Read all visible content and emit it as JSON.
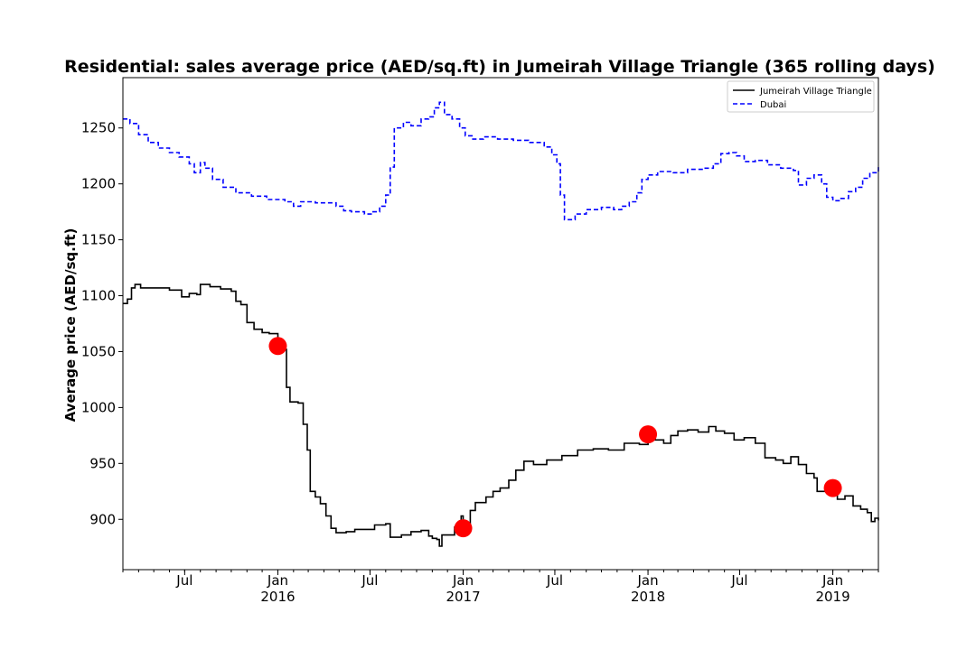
{
  "chart_data": {
    "type": "line",
    "title": "Residential: sales average price (AED/sq.ft) in Jumeirah Village Triangle (365 rolling days)",
    "xlabel": "",
    "ylabel": "Average price (AED/sq.ft)",
    "x_range": [
      "2015-03-01",
      "2019-04-01"
    ],
    "ylim": [
      855,
      1295
    ],
    "y_ticks": [
      900,
      950,
      1000,
      1050,
      1100,
      1150,
      1200,
      1250
    ],
    "x_ticks": [
      {
        "date": "2015-07-01",
        "label": "Jul",
        "year": ""
      },
      {
        "date": "2016-01-01",
        "label": "Jan",
        "year": "2016"
      },
      {
        "date": "2016-07-01",
        "label": "Jul",
        "year": ""
      },
      {
        "date": "2017-01-01",
        "label": "Jan",
        "year": "2017"
      },
      {
        "date": "2017-07-01",
        "label": "Jul",
        "year": ""
      },
      {
        "date": "2018-01-01",
        "label": "Jan",
        "year": "2018"
      },
      {
        "date": "2018-07-01",
        "label": "Jul",
        "year": ""
      },
      {
        "date": "2019-01-01",
        "label": "Jan",
        "year": "2019"
      }
    ],
    "grid": false,
    "legend_position": "top-right",
    "series": [
      {
        "name": "Jumeirah Village Triangle",
        "color": "#000000",
        "style": "solid",
        "points": [
          [
            "2015-03-01",
            1093
          ],
          [
            "2015-03-10",
            1097
          ],
          [
            "2015-03-18",
            1107
          ],
          [
            "2015-03-25",
            1110
          ],
          [
            "2015-04-05",
            1107
          ],
          [
            "2015-05-01",
            1107
          ],
          [
            "2015-06-01",
            1105
          ],
          [
            "2015-06-25",
            1099
          ],
          [
            "2015-07-10",
            1102
          ],
          [
            "2015-07-25",
            1101
          ],
          [
            "2015-08-01",
            1110
          ],
          [
            "2015-08-20",
            1108
          ],
          [
            "2015-09-10",
            1106
          ],
          [
            "2015-10-01",
            1104
          ],
          [
            "2015-10-10",
            1095
          ],
          [
            "2015-10-20",
            1092
          ],
          [
            "2015-11-01",
            1076
          ],
          [
            "2015-11-15",
            1070
          ],
          [
            "2015-12-01",
            1067
          ],
          [
            "2015-12-15",
            1066
          ],
          [
            "2016-01-01",
            1055
          ],
          [
            "2016-01-12",
            1052
          ],
          [
            "2016-01-18",
            1018
          ],
          [
            "2016-01-25",
            1005
          ],
          [
            "2016-02-10",
            1004
          ],
          [
            "2016-02-20",
            985
          ],
          [
            "2016-02-28",
            962
          ],
          [
            "2016-03-05",
            925
          ],
          [
            "2016-03-15",
            920
          ],
          [
            "2016-03-25",
            914
          ],
          [
            "2016-04-05",
            903
          ],
          [
            "2016-04-15",
            892
          ],
          [
            "2016-04-25",
            888
          ],
          [
            "2016-05-15",
            889
          ],
          [
            "2016-06-01",
            891
          ],
          [
            "2016-06-20",
            891
          ],
          [
            "2016-07-10",
            895
          ],
          [
            "2016-08-01",
            896
          ],
          [
            "2016-08-10",
            884
          ],
          [
            "2016-09-01",
            886
          ],
          [
            "2016-09-20",
            889
          ],
          [
            "2016-10-10",
            890
          ],
          [
            "2016-10-25",
            885
          ],
          [
            "2016-11-01",
            883
          ],
          [
            "2016-11-10",
            882
          ],
          [
            "2016-11-15",
            876
          ],
          [
            "2016-11-20",
            886
          ],
          [
            "2016-12-01",
            886
          ],
          [
            "2016-12-15",
            893
          ],
          [
            "2016-12-28",
            903
          ],
          [
            "2017-01-01",
            892
          ],
          [
            "2017-01-15",
            908
          ],
          [
            "2017-01-25",
            915
          ],
          [
            "2017-02-15",
            920
          ],
          [
            "2017-03-01",
            925
          ],
          [
            "2017-03-15",
            928
          ],
          [
            "2017-04-01",
            935
          ],
          [
            "2017-04-15",
            944
          ],
          [
            "2017-05-01",
            952
          ],
          [
            "2017-05-20",
            949
          ],
          [
            "2017-06-15",
            953
          ],
          [
            "2017-07-15",
            957
          ],
          [
            "2017-08-15",
            962
          ],
          [
            "2017-09-15",
            963
          ],
          [
            "2017-10-15",
            962
          ],
          [
            "2017-11-15",
            968
          ],
          [
            "2017-12-15",
            967
          ],
          [
            "2018-01-01",
            976
          ],
          [
            "2018-01-15",
            971
          ],
          [
            "2018-02-01",
            968
          ],
          [
            "2018-02-15",
            975
          ],
          [
            "2018-03-01",
            979
          ],
          [
            "2018-03-20",
            980
          ],
          [
            "2018-04-10",
            978
          ],
          [
            "2018-05-01",
            983
          ],
          [
            "2018-05-15",
            979
          ],
          [
            "2018-06-01",
            977
          ],
          [
            "2018-06-20",
            971
          ],
          [
            "2018-07-10",
            973
          ],
          [
            "2018-08-01",
            968
          ],
          [
            "2018-08-20",
            955
          ],
          [
            "2018-09-10",
            953
          ],
          [
            "2018-09-25",
            950
          ],
          [
            "2018-10-10",
            956
          ],
          [
            "2018-10-25",
            949
          ],
          [
            "2018-11-10",
            941
          ],
          [
            "2018-11-25",
            937
          ],
          [
            "2018-12-01",
            925
          ],
          [
            "2018-12-20",
            927
          ],
          [
            "2019-01-01",
            928
          ],
          [
            "2019-01-10",
            918
          ],
          [
            "2019-01-25",
            921
          ],
          [
            "2019-02-10",
            912
          ],
          [
            "2019-02-25",
            909
          ],
          [
            "2019-03-10",
            906
          ],
          [
            "2019-03-18",
            898
          ],
          [
            "2019-03-25",
            901
          ],
          [
            "2019-04-01",
            899
          ]
        ]
      },
      {
        "name": "Dubai",
        "color": "#0000ff",
        "style": "dashed",
        "points": [
          [
            "2015-03-01",
            1258
          ],
          [
            "2015-03-15",
            1254
          ],
          [
            "2015-04-01",
            1244
          ],
          [
            "2015-04-20",
            1237
          ],
          [
            "2015-05-10",
            1232
          ],
          [
            "2015-06-01",
            1228
          ],
          [
            "2015-06-20",
            1224
          ],
          [
            "2015-07-10",
            1218
          ],
          [
            "2015-07-20",
            1210
          ],
          [
            "2015-08-01",
            1219
          ],
          [
            "2015-08-10",
            1214
          ],
          [
            "2015-08-25",
            1204
          ],
          [
            "2015-09-15",
            1197
          ],
          [
            "2015-10-10",
            1192
          ],
          [
            "2015-11-10",
            1189
          ],
          [
            "2015-12-10",
            1186
          ],
          [
            "2016-01-15",
            1184
          ],
          [
            "2016-02-01",
            1180
          ],
          [
            "2016-02-15",
            1184
          ],
          [
            "2016-03-15",
            1183
          ],
          [
            "2016-04-10",
            1183
          ],
          [
            "2016-04-25",
            1180
          ],
          [
            "2016-05-10",
            1176
          ],
          [
            "2016-05-25",
            1175
          ],
          [
            "2016-06-20",
            1173
          ],
          [
            "2016-07-05",
            1175
          ],
          [
            "2016-07-20",
            1180
          ],
          [
            "2016-08-01",
            1190
          ],
          [
            "2016-08-10",
            1215
          ],
          [
            "2016-08-18",
            1250
          ],
          [
            "2016-09-05",
            1255
          ],
          [
            "2016-09-20",
            1252
          ],
          [
            "2016-10-10",
            1258
          ],
          [
            "2016-10-25",
            1260
          ],
          [
            "2016-11-05",
            1268
          ],
          [
            "2016-11-15",
            1273
          ],
          [
            "2016-11-25",
            1262
          ],
          [
            "2016-12-10",
            1258
          ],
          [
            "2016-12-25",
            1250
          ],
          [
            "2017-01-05",
            1243
          ],
          [
            "2017-01-20",
            1240
          ],
          [
            "2017-02-10",
            1242
          ],
          [
            "2017-03-10",
            1240
          ],
          [
            "2017-04-10",
            1239
          ],
          [
            "2017-05-10",
            1237
          ],
          [
            "2017-06-10",
            1233
          ],
          [
            "2017-06-25",
            1226
          ],
          [
            "2017-07-05",
            1218
          ],
          [
            "2017-07-12",
            1190
          ],
          [
            "2017-07-20",
            1168
          ],
          [
            "2017-08-10",
            1173
          ],
          [
            "2017-09-01",
            1177
          ],
          [
            "2017-10-01",
            1179
          ],
          [
            "2017-10-25",
            1177
          ],
          [
            "2017-11-10",
            1180
          ],
          [
            "2017-11-25",
            1184
          ],
          [
            "2017-12-10",
            1192
          ],
          [
            "2017-12-20",
            1204
          ],
          [
            "2018-01-01",
            1208
          ],
          [
            "2018-01-20",
            1211
          ],
          [
            "2018-02-20",
            1210
          ],
          [
            "2018-03-20",
            1213
          ],
          [
            "2018-04-20",
            1214
          ],
          [
            "2018-05-10",
            1218
          ],
          [
            "2018-05-25",
            1227
          ],
          [
            "2018-06-10",
            1228
          ],
          [
            "2018-06-25",
            1225
          ],
          [
            "2018-07-10",
            1220
          ],
          [
            "2018-08-01",
            1221
          ],
          [
            "2018-08-25",
            1217
          ],
          [
            "2018-09-20",
            1214
          ],
          [
            "2018-10-15",
            1212
          ],
          [
            "2018-10-25",
            1199
          ],
          [
            "2018-11-10",
            1205
          ],
          [
            "2018-11-25",
            1208
          ],
          [
            "2018-12-10",
            1200
          ],
          [
            "2018-12-20",
            1188
          ],
          [
            "2019-01-01",
            1185
          ],
          [
            "2019-01-15",
            1187
          ],
          [
            "2019-02-01",
            1193
          ],
          [
            "2019-02-15",
            1197
          ],
          [
            "2019-03-01",
            1205
          ],
          [
            "2019-03-15",
            1210
          ],
          [
            "2019-04-01",
            1215
          ]
        ]
      }
    ],
    "highlight_markers": {
      "color": "#ff0000",
      "points": [
        [
          "2016-01-01",
          1055
        ],
        [
          "2017-01-01",
          892
        ],
        [
          "2018-01-01",
          976
        ],
        [
          "2019-01-01",
          928
        ]
      ]
    }
  }
}
